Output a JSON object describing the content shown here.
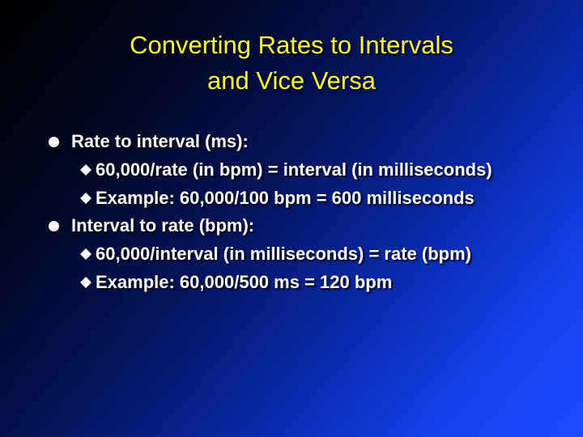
{
  "slide": {
    "title_line1": "Converting Rates to Intervals",
    "title_line2": "and Vice Versa",
    "colors": {
      "title": "#ffff33",
      "text": "#ffffff",
      "background_dark": "#000000",
      "background_light": "#1a4cff"
    },
    "bullets": [
      {
        "marker_icon": "filled-circle-bullet",
        "text": "Rate to interval (ms):",
        "sub": [
          {
            "marker_icon": "diamond-bullet",
            "text": "60,000/rate (in bpm) = interval (in milliseconds)"
          },
          {
            "marker_icon": "diamond-bullet",
            "text": "Example:  60,000/100 bpm = 600 milliseconds"
          }
        ]
      },
      {
        "marker_icon": "filled-circle-bullet",
        "text": "Interval to rate (bpm):",
        "sub": [
          {
            "marker_icon": "diamond-bullet",
            "text": "60,000/interval (in milliseconds) = rate (bpm)"
          },
          {
            "marker_icon": "diamond-bullet",
            "text": "Example:  60,000/500 ms = 120 bpm"
          }
        ]
      }
    ]
  }
}
